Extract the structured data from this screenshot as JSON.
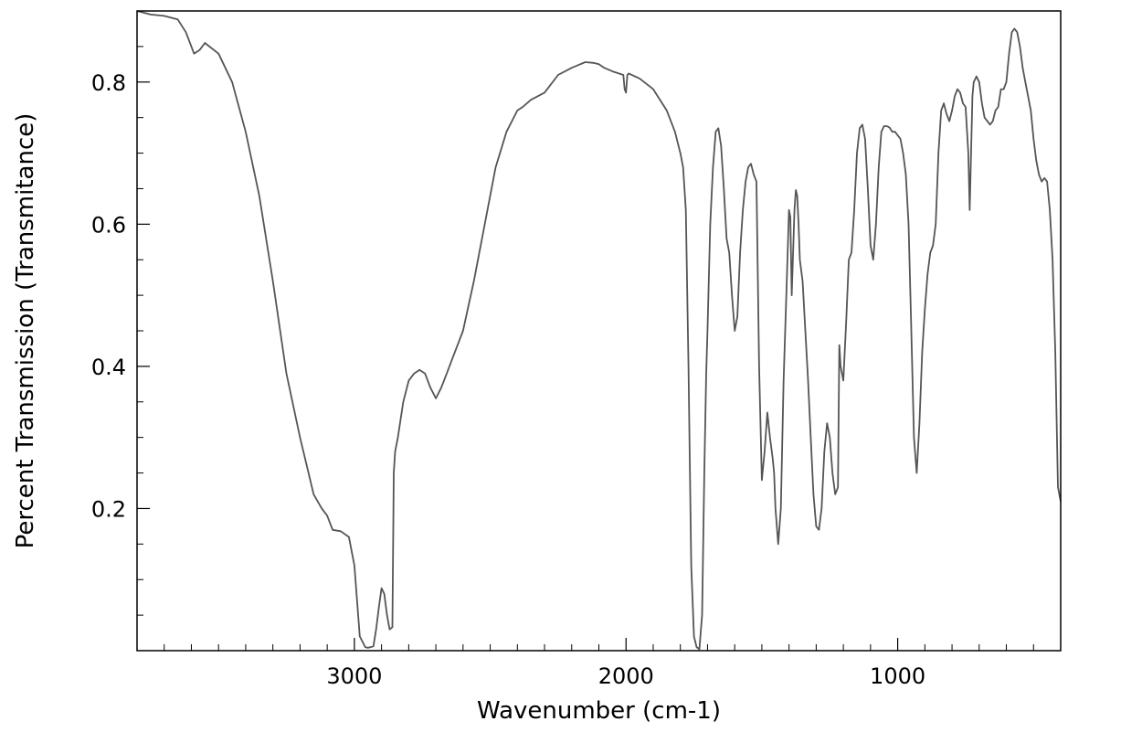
{
  "chart_data": {
    "type": "line",
    "title": "",
    "xlabel": "Wavenumber (cm-1)",
    "ylabel": "Percent Transmission (Transmitance)",
    "xlim": [
      3800,
      400
    ],
    "ylim": [
      0,
      0.9
    ],
    "x_reversed": true,
    "grid": false,
    "legend": "none",
    "line_color": "#555555",
    "x_ticks": [
      3000,
      2000,
      1000
    ],
    "x_tick_labels": [
      "3000",
      "2000",
      "1000"
    ],
    "y_ticks": [
      0.2,
      0.4,
      0.6,
      0.8
    ],
    "y_tick_labels": [
      "0.2",
      "0.4",
      "0.6",
      "0.8"
    ],
    "series": [
      {
        "x": [
          3800,
          3750,
          3700,
          3650,
          3620,
          3590,
          3570,
          3550,
          3500,
          3450,
          3400,
          3350,
          3300,
          3250,
          3200,
          3150,
          3120,
          3100,
          3080,
          3050,
          3020,
          3000,
          2980,
          2960,
          2950,
          2930,
          2920,
          2910,
          2900,
          2890,
          2880,
          2870,
          2860,
          2855,
          2850,
          2840,
          2820,
          2800,
          2780,
          2760,
          2740,
          2720,
          2700,
          2680,
          2660,
          2640,
          2600,
          2560,
          2520,
          2480,
          2440,
          2400,
          2380,
          2350,
          2300,
          2250,
          2200,
          2150,
          2120,
          2100,
          2080,
          2050,
          2010,
          2005,
          2000,
          1995,
          1990,
          1950,
          1900,
          1850,
          1820,
          1800,
          1790,
          1780,
          1770,
          1760,
          1750,
          1740,
          1730,
          1720,
          1712,
          1705,
          1700,
          1690,
          1680,
          1670,
          1660,
          1650,
          1640,
          1630,
          1620,
          1610,
          1600,
          1590,
          1580,
          1570,
          1560,
          1550,
          1540,
          1530,
          1520,
          1510,
          1500,
          1490,
          1480,
          1470,
          1460,
          1455,
          1450,
          1440,
          1430,
          1420,
          1410,
          1400,
          1395,
          1390,
          1380,
          1375,
          1370,
          1365,
          1360,
          1350,
          1340,
          1330,
          1320,
          1310,
          1300,
          1290,
          1280,
          1270,
          1260,
          1250,
          1240,
          1230,
          1220,
          1215,
          1210,
          1200,
          1190,
          1180,
          1170,
          1160,
          1150,
          1140,
          1130,
          1120,
          1110,
          1100,
          1090,
          1080,
          1070,
          1060,
          1050,
          1040,
          1030,
          1020,
          1010,
          1000,
          990,
          980,
          970,
          960,
          950,
          940,
          930,
          920,
          910,
          900,
          890,
          880,
          870,
          860,
          850,
          840,
          830,
          820,
          810,
          800,
          790,
          780,
          770,
          760,
          750,
          740,
          735,
          730,
          725,
          720,
          710,
          700,
          690,
          680,
          670,
          660,
          650,
          640,
          630,
          620,
          610,
          600,
          590,
          580,
          570,
          560,
          550,
          540,
          530,
          520,
          510,
          500,
          490,
          480,
          470,
          460,
          450,
          440,
          430,
          420,
          410,
          400
        ],
        "y": [
          0.9,
          0.895,
          0.893,
          0.888,
          0.87,
          0.84,
          0.845,
          0.855,
          0.84,
          0.8,
          0.73,
          0.64,
          0.52,
          0.39,
          0.3,
          0.22,
          0.2,
          0.19,
          0.17,
          0.168,
          0.16,
          0.12,
          0.02,
          0.005,
          0.004,
          0.006,
          0.03,
          0.06,
          0.088,
          0.08,
          0.05,
          0.03,
          0.033,
          0.25,
          0.28,
          0.3,
          0.35,
          0.38,
          0.39,
          0.395,
          0.39,
          0.37,
          0.355,
          0.37,
          0.39,
          0.41,
          0.45,
          0.52,
          0.6,
          0.68,
          0.73,
          0.76,
          0.765,
          0.775,
          0.785,
          0.81,
          0.82,
          0.828,
          0.827,
          0.825,
          0.82,
          0.815,
          0.81,
          0.79,
          0.785,
          0.81,
          0.812,
          0.805,
          0.79,
          0.76,
          0.73,
          0.7,
          0.68,
          0.62,
          0.4,
          0.12,
          0.02,
          0.005,
          0.002,
          0.05,
          0.25,
          0.39,
          0.45,
          0.6,
          0.68,
          0.73,
          0.735,
          0.71,
          0.65,
          0.58,
          0.56,
          0.5,
          0.45,
          0.47,
          0.56,
          0.62,
          0.66,
          0.68,
          0.685,
          0.67,
          0.66,
          0.4,
          0.24,
          0.28,
          0.335,
          0.3,
          0.27,
          0.25,
          0.2,
          0.15,
          0.2,
          0.38,
          0.5,
          0.62,
          0.61,
          0.5,
          0.62,
          0.648,
          0.64,
          0.6,
          0.55,
          0.52,
          0.45,
          0.38,
          0.3,
          0.22,
          0.175,
          0.17,
          0.2,
          0.28,
          0.32,
          0.3,
          0.25,
          0.22,
          0.23,
          0.43,
          0.4,
          0.38,
          0.46,
          0.55,
          0.56,
          0.62,
          0.7,
          0.735,
          0.74,
          0.72,
          0.65,
          0.57,
          0.55,
          0.6,
          0.68,
          0.73,
          0.738,
          0.738,
          0.736,
          0.73,
          0.73,
          0.725,
          0.72,
          0.7,
          0.67,
          0.6,
          0.45,
          0.3,
          0.25,
          0.32,
          0.42,
          0.48,
          0.53,
          0.56,
          0.57,
          0.6,
          0.7,
          0.76,
          0.77,
          0.755,
          0.745,
          0.76,
          0.78,
          0.79,
          0.785,
          0.77,
          0.765,
          0.7,
          0.62,
          0.7,
          0.78,
          0.8,
          0.808,
          0.8,
          0.77,
          0.75,
          0.745,
          0.74,
          0.745,
          0.76,
          0.765,
          0.79,
          0.79,
          0.8,
          0.84,
          0.87,
          0.875,
          0.87,
          0.85,
          0.82,
          0.8,
          0.78,
          0.76,
          0.72,
          0.69,
          0.67,
          0.66,
          0.665,
          0.66,
          0.62,
          0.55,
          0.42,
          0.23,
          0.21
        ]
      }
    ]
  }
}
